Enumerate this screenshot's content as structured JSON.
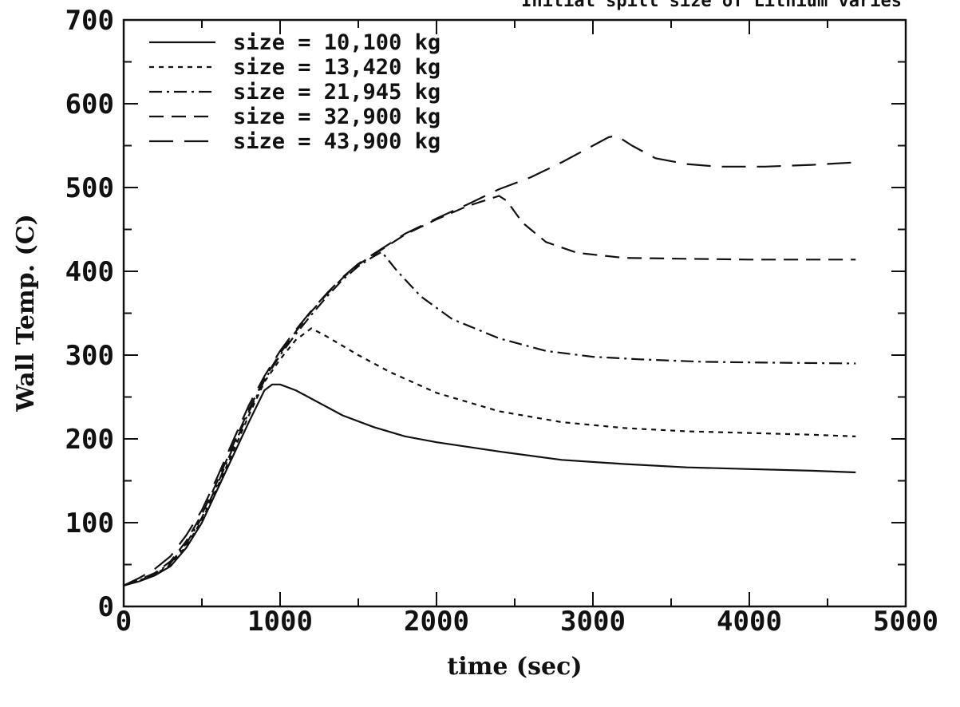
{
  "chart_data": {
    "type": "line",
    "top_note": "Initial spill size of Lithium varies",
    "xlabel": "time (sec)",
    "ylabel": "Wall Temp. (C)",
    "xlim": [
      0,
      5000
    ],
    "ylim": [
      0,
      700
    ],
    "x_ticks": [
      "0",
      "1000",
      "2000",
      "3000",
      "4000",
      "5000"
    ],
    "y_ticks": [
      "0",
      "100",
      "200",
      "300",
      "400",
      "500",
      "600",
      "700"
    ],
    "legend_position": "top-left",
    "grid": false,
    "series": [
      {
        "name": "size = 10,100 kg",
        "dash": "solid",
        "x": [
          0,
          100,
          200,
          300,
          400,
          500,
          600,
          700,
          800,
          900,
          950,
          1000,
          1100,
          1200,
          1400,
          1600,
          1800,
          2000,
          2400,
          2800,
          3200,
          3600,
          4000,
          4400,
          4680
        ],
        "y": [
          25,
          30,
          37,
          48,
          70,
          100,
          140,
          180,
          220,
          258,
          265,
          265,
          258,
          248,
          228,
          214,
          203,
          196,
          185,
          175,
          170,
          166,
          164,
          162,
          160
        ]
      },
      {
        "name": "size = 13,420 kg",
        "dash": "short",
        "x": [
          0,
          100,
          200,
          300,
          400,
          500,
          600,
          700,
          800,
          900,
          1000,
          1100,
          1200,
          1300,
          1500,
          1700,
          2000,
          2400,
          2800,
          3200,
          3600,
          4000,
          4400,
          4680
        ],
        "y": [
          25,
          31,
          38,
          50,
          72,
          103,
          143,
          185,
          228,
          268,
          295,
          318,
          332,
          322,
          300,
          280,
          255,
          233,
          220,
          213,
          209,
          207,
          205,
          203
        ]
      },
      {
        "name": "size = 21,945 kg",
        "dash": "dashdot",
        "x": [
          0,
          100,
          200,
          300,
          400,
          500,
          600,
          700,
          800,
          900,
          1000,
          1100,
          1200,
          1300,
          1400,
          1500,
          1600,
          1650,
          1750,
          1900,
          2100,
          2400,
          2700,
          3000,
          3300,
          3700,
          4100,
          4680
        ],
        "y": [
          25,
          31,
          39,
          52,
          75,
          106,
          146,
          190,
          232,
          270,
          300,
          325,
          348,
          370,
          390,
          406,
          418,
          423,
          400,
          370,
          343,
          320,
          305,
          298,
          295,
          292,
          291,
          290
        ]
      },
      {
        "name": "size = 32,900 kg",
        "dash": "medium",
        "x": [
          0,
          100,
          200,
          300,
          400,
          500,
          600,
          700,
          800,
          900,
          1000,
          1100,
          1200,
          1300,
          1400,
          1500,
          1600,
          1700,
          1800,
          2000,
          2200,
          2400,
          2450,
          2550,
          2700,
          2900,
          3200,
          3600,
          4000,
          4680
        ],
        "y": [
          25,
          32,
          40,
          54,
          78,
          110,
          150,
          193,
          235,
          272,
          302,
          328,
          352,
          373,
          392,
          408,
          420,
          432,
          444,
          462,
          478,
          490,
          484,
          458,
          435,
          422,
          416,
          415,
          414,
          414
        ]
      },
      {
        "name": "size = 43,900 kg",
        "dash": "long",
        "x": [
          0,
          100,
          200,
          300,
          400,
          500,
          600,
          700,
          800,
          900,
          1000,
          1100,
          1200,
          1300,
          1400,
          1500,
          1600,
          1700,
          1800,
          2000,
          2200,
          2400,
          2600,
          2800,
          3000,
          3100,
          3150,
          3250,
          3400,
          3600,
          3800,
          4100,
          4400,
          4680
        ],
        "y": [
          25,
          34,
          45,
          60,
          85,
          115,
          155,
          198,
          240,
          275,
          305,
          330,
          353,
          374,
          393,
          409,
          421,
          433,
          445,
          463,
          480,
          498,
          512,
          530,
          550,
          560,
          562,
          550,
          535,
          528,
          525,
          525,
          527,
          530
        ]
      }
    ]
  }
}
